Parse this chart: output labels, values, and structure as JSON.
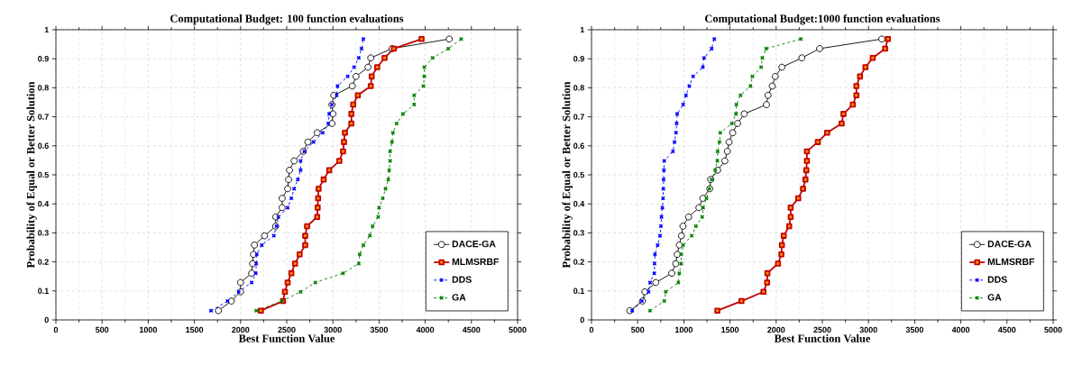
{
  "chart_data": [
    {
      "type": "line",
      "title": "Computational Budget: 100 function evaluations",
      "xlabel": "Best Function Value",
      "ylabel": "Probability of Equal or Better Solution",
      "xlim": [
        0,
        5000
      ],
      "ylim": [
        0,
        1
      ],
      "xticks": [
        0,
        500,
        1000,
        1500,
        2000,
        2500,
        3000,
        3500,
        4000,
        4500,
        5000
      ],
      "yticks": [
        0,
        0.1,
        0.2,
        0.3,
        0.4,
        0.5,
        0.6,
        0.7,
        0.8,
        0.9,
        1
      ],
      "grid": true,
      "legend": "bottom right",
      "series": [
        {
          "name": "DACE-GA",
          "color": "#000000",
          "marker": "circle",
          "line_style": "solid",
          "x": [
            1760,
            1900,
            2000,
            2000,
            2120,
            2130,
            2140,
            2150,
            2260,
            2380,
            2380,
            2450,
            2450,
            2510,
            2520,
            2530,
            2580,
            2680,
            2730,
            2830,
            2990,
            3000,
            2990,
            3010,
            3210,
            3250,
            3380,
            3410,
            3640,
            4260
          ],
          "values": [
            0.032,
            0.065,
            0.097,
            0.129,
            0.161,
            0.194,
            0.226,
            0.258,
            0.29,
            0.323,
            0.355,
            0.387,
            0.419,
            0.452,
            0.484,
            0.516,
            0.548,
            0.581,
            0.613,
            0.645,
            0.677,
            0.71,
            0.742,
            0.774,
            0.806,
            0.839,
            0.871,
            0.903,
            0.935,
            0.968
          ]
        },
        {
          "name": "MLMSRBF",
          "color": "#c00000",
          "marker": "square",
          "line_style": "solid",
          "x": [
            2220,
            2460,
            2480,
            2510,
            2550,
            2590,
            2640,
            2700,
            2700,
            2720,
            2830,
            2835,
            2840,
            2845,
            2900,
            2960,
            3070,
            3110,
            3120,
            3130,
            3200,
            3200,
            3220,
            3270,
            3410,
            3420,
            3480,
            3560,
            3660,
            3960
          ],
          "values": [
            0.032,
            0.065,
            0.097,
            0.129,
            0.161,
            0.194,
            0.226,
            0.258,
            0.29,
            0.323,
            0.355,
            0.387,
            0.419,
            0.452,
            0.484,
            0.516,
            0.548,
            0.581,
            0.613,
            0.645,
            0.677,
            0.71,
            0.742,
            0.774,
            0.806,
            0.839,
            0.871,
            0.903,
            0.935,
            0.968
          ]
        },
        {
          "name": "DDS",
          "color": "#0000ff",
          "marker": "cross",
          "line_style": "dashed",
          "x": [
            1680,
            1860,
            1980,
            2120,
            2165,
            2170,
            2175,
            2230,
            2360,
            2390,
            2410,
            2510,
            2550,
            2580,
            2620,
            2650,
            2650,
            2690,
            2790,
            2890,
            2950,
            2960,
            2990,
            3040,
            3050,
            3160,
            3230,
            3280,
            3310,
            3330
          ],
          "values": [
            0.032,
            0.065,
            0.097,
            0.129,
            0.161,
            0.194,
            0.226,
            0.258,
            0.29,
            0.323,
            0.355,
            0.387,
            0.419,
            0.452,
            0.484,
            0.516,
            0.548,
            0.581,
            0.613,
            0.645,
            0.677,
            0.71,
            0.742,
            0.774,
            0.806,
            0.839,
            0.871,
            0.903,
            0.935,
            0.968
          ]
        },
        {
          "name": "GA",
          "color": "#008000",
          "marker": "cross",
          "line_style": "dashed",
          "x": [
            2170,
            2450,
            2650,
            2810,
            3110,
            3280,
            3290,
            3330,
            3400,
            3430,
            3490,
            3500,
            3540,
            3570,
            3600,
            3610,
            3620,
            3620,
            3640,
            3650,
            3690,
            3760,
            3880,
            3880,
            3980,
            3990,
            3990,
            4080,
            4250,
            4390
          ],
          "values": [
            0.032,
            0.065,
            0.097,
            0.129,
            0.161,
            0.194,
            0.226,
            0.258,
            0.29,
            0.323,
            0.355,
            0.387,
            0.419,
            0.452,
            0.484,
            0.516,
            0.548,
            0.581,
            0.613,
            0.645,
            0.677,
            0.71,
            0.742,
            0.774,
            0.806,
            0.839,
            0.871,
            0.903,
            0.935,
            0.968
          ]
        }
      ]
    },
    {
      "type": "line",
      "title": "Computational Budget:1000 function evaluations",
      "xlabel": "Best Function Value",
      "ylabel": "Probability of Equal or Better Solution",
      "xlim": [
        0,
        5000
      ],
      "ylim": [
        0,
        1
      ],
      "xticks": [
        0,
        500,
        1000,
        1500,
        2000,
        2500,
        3000,
        3500,
        4000,
        4500,
        5000
      ],
      "yticks": [
        0,
        0.1,
        0.2,
        0.3,
        0.4,
        0.5,
        0.6,
        0.7,
        0.8,
        0.9,
        1
      ],
      "grid": true,
      "legend": "bottom right",
      "series": [
        {
          "name": "DACE-GA",
          "color": "#000000",
          "marker": "circle",
          "line_style": "solid",
          "x": [
            415,
            552,
            578,
            696,
            869,
            912,
            928,
            951,
            974,
            990,
            1052,
            1163,
            1206,
            1281,
            1291,
            1366,
            1444,
            1471,
            1490,
            1529,
            1582,
            1654,
            1895,
            1912,
            1958,
            1990,
            2062,
            2278,
            2471,
            3144
          ],
          "values": [
            0.032,
            0.065,
            0.097,
            0.129,
            0.161,
            0.194,
            0.226,
            0.258,
            0.29,
            0.323,
            0.355,
            0.387,
            0.419,
            0.452,
            0.484,
            0.516,
            0.548,
            0.581,
            0.613,
            0.645,
            0.677,
            0.71,
            0.742,
            0.774,
            0.806,
            0.839,
            0.871,
            0.903,
            0.935,
            0.968
          ]
        },
        {
          "name": "MLMSRBF",
          "color": "#c00000",
          "marker": "square",
          "line_style": "solid",
          "x": [
            1363,
            1624,
            1863,
            1902,
            1905,
            2020,
            2056,
            2062,
            2082,
            2141,
            2157,
            2157,
            2239,
            2291,
            2317,
            2327,
            2333,
            2333,
            2451,
            2552,
            2709,
            2729,
            2830,
            2869,
            2869,
            2908,
            2967,
            3046,
            3180,
            3210
          ],
          "values": [
            0.032,
            0.065,
            0.097,
            0.129,
            0.161,
            0.194,
            0.226,
            0.258,
            0.29,
            0.323,
            0.355,
            0.387,
            0.419,
            0.452,
            0.484,
            0.516,
            0.548,
            0.581,
            0.613,
            0.645,
            0.677,
            0.71,
            0.742,
            0.774,
            0.806,
            0.839,
            0.871,
            0.903,
            0.935,
            0.968
          ]
        },
        {
          "name": "DDS",
          "color": "#0000ff",
          "marker": "cross",
          "line_style": "dashed",
          "x": [
            441,
            546,
            618,
            634,
            680,
            683,
            687,
            716,
            742,
            752,
            758,
            768,
            775,
            778,
            781,
            784,
            788,
            882,
            899,
            915,
            922,
            928,
            993,
            1023,
            1059,
            1101,
            1206,
            1219,
            1301,
            1330
          ],
          "values": [
            0.032,
            0.065,
            0.097,
            0.129,
            0.161,
            0.194,
            0.226,
            0.258,
            0.29,
            0.323,
            0.355,
            0.387,
            0.419,
            0.452,
            0.484,
            0.516,
            0.548,
            0.581,
            0.613,
            0.645,
            0.677,
            0.71,
            0.742,
            0.774,
            0.806,
            0.839,
            0.871,
            0.903,
            0.935,
            0.968
          ]
        },
        {
          "name": "GA",
          "color": "#008000",
          "marker": "cross",
          "line_style": "dashed",
          "x": [
            634,
            788,
            804,
            941,
            951,
            971,
            971,
            993,
            1085,
            1131,
            1199,
            1209,
            1245,
            1278,
            1301,
            1340,
            1363,
            1366,
            1386,
            1395,
            1520,
            1565,
            1569,
            1614,
            1722,
            1742,
            1837,
            1850,
            1892,
            2268
          ],
          "values": [
            0.032,
            0.065,
            0.097,
            0.129,
            0.161,
            0.194,
            0.226,
            0.258,
            0.29,
            0.323,
            0.355,
            0.387,
            0.419,
            0.452,
            0.484,
            0.516,
            0.548,
            0.581,
            0.613,
            0.645,
            0.677,
            0.71,
            0.742,
            0.774,
            0.806,
            0.839,
            0.871,
            0.903,
            0.935,
            0.968
          ]
        }
      ]
    }
  ]
}
